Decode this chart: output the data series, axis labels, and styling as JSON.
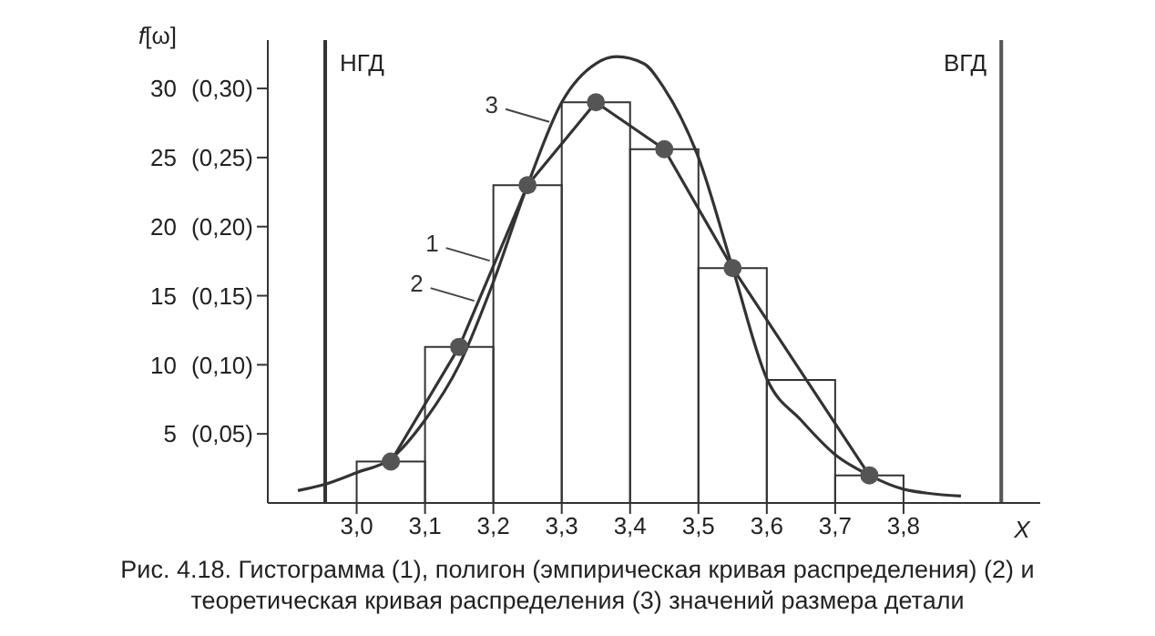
{
  "chart_data": {
    "type": "histogram",
    "ylabel": "f[ω]",
    "xlabel": "X",
    "bins": [
      3.0,
      3.1,
      3.2,
      3.3,
      3.4,
      3.5,
      3.6,
      3.7,
      3.8
    ],
    "series": [
      {
        "name": "1",
        "color": "#333333",
        "values": [
          3.0,
          11.3,
          23,
          29,
          25.6,
          17,
          8.9,
          2.0
        ]
      },
      {
        "name": "2",
        "type": "line",
        "color": "#333333",
        "marker": "circle",
        "x": [
          3.05,
          3.15,
          3.25,
          3.35,
          3.45,
          3.55,
          3.75
        ],
        "values": [
          3.0,
          11.3,
          23,
          29,
          25.6,
          17,
          2.0
        ]
      },
      {
        "name": "3",
        "type": "line",
        "color": "#333333",
        "marker": "none",
        "x": [
          2.914,
          2.95,
          3.0,
          3.05,
          3.1,
          3.15,
          3.2,
          3.25,
          3.3,
          3.35,
          3.38,
          3.42,
          3.45,
          3.5,
          3.55,
          3.6,
          3.65,
          3.7,
          3.75,
          3.8,
          3.884
        ],
        "values": [
          0.9,
          1.3,
          2.2,
          3.2,
          6,
          10,
          16,
          23,
          29,
          31.8,
          32.3,
          31.8,
          30,
          25,
          17,
          9,
          6,
          3.5,
          2,
          1,
          0.5
        ]
      }
    ],
    "xlim": [
      2.87,
      4.0
    ],
    "xticks": [
      {
        "value": 3.0,
        "label": "3,0"
      },
      {
        "value": 3.1,
        "label": "3,1"
      },
      {
        "value": 3.2,
        "label": "3,2"
      },
      {
        "value": 3.3,
        "label": "3,3"
      },
      {
        "value": 3.4,
        "label": "3,4"
      },
      {
        "value": 3.5,
        "label": "3,5"
      },
      {
        "value": 3.6,
        "label": "3,6"
      },
      {
        "value": 3.7,
        "label": "3,7"
      },
      {
        "value": 3.8,
        "label": "3,8"
      }
    ],
    "ylim": [
      0,
      33.5
    ],
    "yticks": [
      5,
      10,
      15,
      20,
      25,
      30
    ],
    "y2lim": [
      0,
      0.335
    ],
    "y2ticks": [
      {
        "value": 0.05,
        "label": "(0,05)"
      },
      {
        "value": 0.1,
        "label": "(0,10)"
      },
      {
        "value": 0.15,
        "label": "(0,15)"
      },
      {
        "value": 0.2,
        "label": "(0,20)"
      },
      {
        "value": 0.25,
        "label": "(0,25)"
      },
      {
        "value": 0.3,
        "label": "(0,30)"
      }
    ],
    "ref_lines": [
      {
        "axis": "x",
        "value": 2.954,
        "label": "НГД",
        "color": "#333333"
      },
      {
        "axis": "x",
        "value": 3.943,
        "label": "ВГД",
        "color": "#555555"
      }
    ],
    "grid": false,
    "legend": false,
    "annotations": [
      "Рис. 4.18. Гистограмма (1), полигон (эмпирическая кривая распределения) (2) и теоретическая кривая распределения (3) значений размера детали"
    ]
  }
}
